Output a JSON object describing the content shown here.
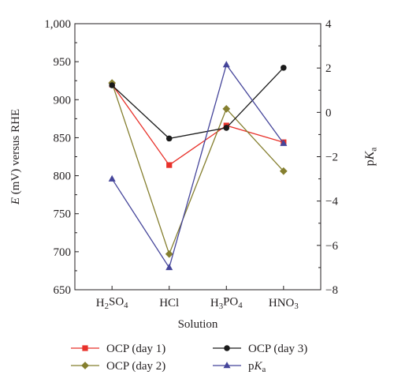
{
  "chart_data": {
    "type": "line",
    "title": "",
    "categories": [
      "H2SO4",
      "HCl",
      "H3PO4",
      "HNO3"
    ],
    "category_labels": [
      {
        "parts": [
          {
            "t": "H"
          },
          {
            "t": "2",
            "sub": true
          },
          {
            "t": "SO"
          },
          {
            "t": "4",
            "sub": true
          }
        ]
      },
      {
        "parts": [
          {
            "t": "HCl"
          }
        ]
      },
      {
        "parts": [
          {
            "t": "H"
          },
          {
            "t": "3",
            "sub": true
          },
          {
            "t": "PO"
          },
          {
            "t": "4",
            "sub": true
          }
        ]
      },
      {
        "parts": [
          {
            "t": "HNO"
          },
          {
            "t": "3",
            "sub": true
          }
        ]
      }
    ],
    "xlabel": "Solution",
    "ylabel": {
      "parts": [
        {
          "t": "E",
          "italic": true
        },
        {
          "t": " (mV) versus RHE"
        }
      ]
    },
    "y2label": {
      "parts": [
        {
          "t": "p"
        },
        {
          "t": "K",
          "italic": true
        },
        {
          "t": "a",
          "sub": true
        }
      ]
    },
    "ylim": [
      650,
      1000
    ],
    "y2lim": [
      -8,
      4
    ],
    "yticks": [
      650,
      700,
      750,
      800,
      850,
      900,
      950,
      1000
    ],
    "ytick_labels": [
      "650",
      "700",
      "750",
      "800",
      "850",
      "900",
      "950",
      "1,000"
    ],
    "y2ticks": [
      -8,
      -6,
      -4,
      -2,
      0,
      2,
      4
    ],
    "y2tick_labels": [
      "−8",
      "−6",
      "−4",
      "−2",
      "0",
      "2",
      "4"
    ],
    "grid": false,
    "legend_position": "bottom",
    "series": [
      {
        "name": "OCP (day 1)",
        "legend_parts": [
          {
            "t": "OCP (day 1)"
          }
        ],
        "axis": "left",
        "color": "#e8312a",
        "marker": "square",
        "values": [
          920,
          814,
          866,
          844
        ]
      },
      {
        "name": "OCP (day 2)",
        "legend_parts": [
          {
            "t": "OCP (day 2)"
          }
        ],
        "axis": "left",
        "color": "#857f2f",
        "marker": "diamond",
        "values": [
          922,
          697,
          888,
          806
        ]
      },
      {
        "name": "OCP (day 3)",
        "legend_parts": [
          {
            "t": "OCP (day 3)"
          }
        ],
        "axis": "left",
        "color": "#1a1a1a",
        "marker": "circle",
        "values": [
          919,
          849,
          863,
          942
        ]
      },
      {
        "name": "pKa",
        "legend_parts": [
          {
            "t": "p"
          },
          {
            "t": "K",
            "italic": true
          },
          {
            "t": "a",
            "sub": true
          }
        ],
        "axis": "right",
        "color": "#45459a",
        "marker": "triangle",
        "values": [
          -3,
          -7,
          2.15,
          -1.4
        ]
      }
    ]
  }
}
